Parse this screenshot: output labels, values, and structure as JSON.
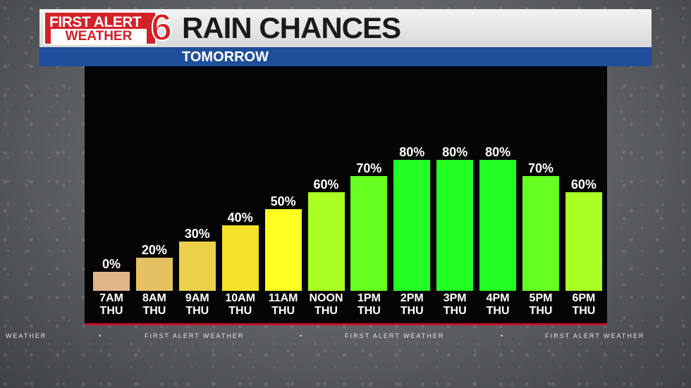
{
  "header": {
    "logo_line1": "FIRST ALERT",
    "logo_line2": "WEATHER",
    "logo_number": "6",
    "title": "RAIN CHANCES",
    "subtitle": "TOMORROW"
  },
  "colors": {
    "brand_red": "#d42027",
    "subbar_blue": "#1f4e9a",
    "baseline_red": "#c8102e"
  },
  "chart_data": {
    "type": "bar",
    "title": "RAIN CHANCES",
    "subtitle": "TOMORROW",
    "unit": "%",
    "ylim": [
      0,
      100
    ],
    "categories": [
      "7AM THU",
      "8AM THU",
      "9AM THU",
      "10AM THU",
      "11AM THU",
      "NOON THU",
      "1PM THU",
      "2PM THU",
      "3PM THU",
      "4PM THU",
      "5PM THU",
      "6PM THU"
    ],
    "time_labels": [
      "7AM",
      "8AM",
      "9AM",
      "10AM",
      "11AM",
      "NOON",
      "1PM",
      "2PM",
      "3PM",
      "4PM",
      "5PM",
      "6PM"
    ],
    "day_labels": [
      "THU",
      "THU",
      "THU",
      "THU",
      "THU",
      "THU",
      "THU",
      "THU",
      "THU",
      "THU",
      "THU",
      "THU"
    ],
    "values": [
      0,
      20,
      30,
      40,
      50,
      60,
      70,
      80,
      80,
      80,
      70,
      60
    ],
    "value_labels": [
      "0%",
      "20%",
      "30%",
      "40%",
      "50%",
      "60%",
      "70%",
      "80%",
      "80%",
      "80%",
      "70%",
      "60%"
    ],
    "bar_colors": [
      "#e2b48a",
      "#e6c164",
      "#ecd04a",
      "#f4e12a",
      "#ffff22",
      "#aaff22",
      "#66ff22",
      "#22ff22",
      "#22ff22",
      "#22ff22",
      "#66ff22",
      "#aaff22"
    ]
  },
  "ticker": {
    "items": [
      "WEATHER",
      "•",
      "FIRST ALERT WEATHER",
      "•",
      "FIRST ALERT WEATHER",
      "•",
      "FIRST ALERT WEATHER"
    ]
  }
}
